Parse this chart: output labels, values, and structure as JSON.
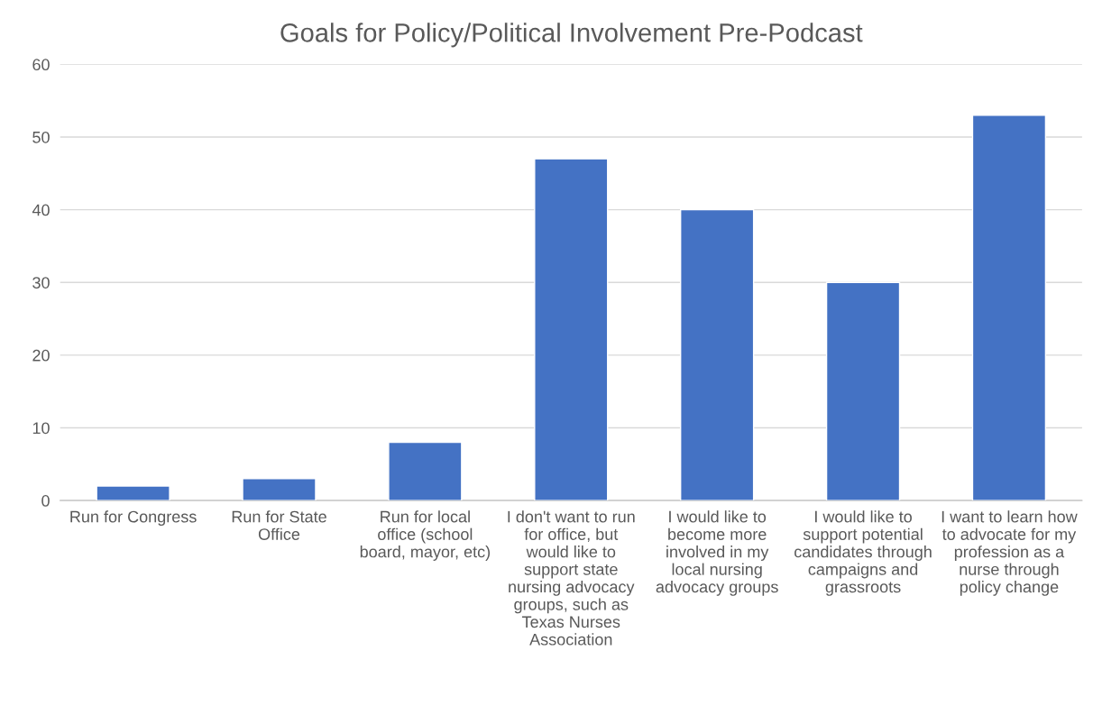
{
  "chart_data": {
    "type": "bar",
    "title": "Goals for Policy/Political Involvement Pre-Podcast",
    "categories": [
      "Run for Congress",
      "Run for State Office",
      "Run for local office (school board, mayor, etc)",
      "I don't want to run for office, but would like to support state nursing advocacy groups, such as Texas Nurses Association",
      "I would like to become more involved in my local nursing advocacy groups",
      "I would like to support potential candidates through campaigns and grassroots",
      "I want to learn how to advocate for my profession as a nurse through policy change"
    ],
    "values": [
      2,
      3,
      8,
      47,
      40,
      30,
      53
    ],
    "color": "#4472c4",
    "ylim": [
      0,
      60
    ],
    "yticks": [
      0,
      10,
      20,
      30,
      40,
      50,
      60
    ],
    "grid": "y"
  }
}
